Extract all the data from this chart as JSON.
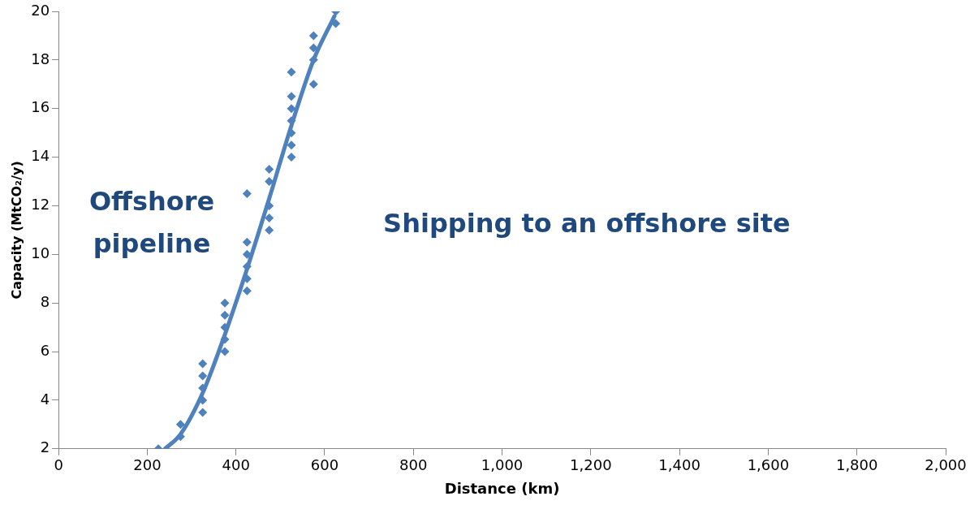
{
  "chart_data": {
    "type": "scatter",
    "xlabel": "Distance (km)",
    "ylabel": "Capacity (MtCO₂/y)",
    "annotations": [
      "Offshore pipeline",
      "Shipping to an offshore site"
    ],
    "series": [
      {
        "type": "scatter",
        "color": "#4f81bd",
        "marker": "diamond",
        "x": [
          225,
          275,
          275,
          325,
          325,
          325,
          325,
          325,
          375,
          375,
          375,
          375,
          375,
          425,
          425,
          425,
          425,
          425,
          425,
          475,
          475,
          475,
          475,
          475,
          525,
          525,
          525,
          525,
          525,
          525,
          525,
          575,
          575,
          575,
          575,
          625,
          625
        ],
        "values": [
          2,
          2.5,
          3,
          3.5,
          4,
          4.5,
          5,
          5.5,
          6,
          6.5,
          7,
          7.5,
          8,
          8.5,
          9,
          9.5,
          10,
          10.5,
          12.5,
          11,
          11.5,
          12,
          13,
          13.5,
          14,
          14.5,
          15,
          15.5,
          16,
          16.5,
          17.5,
          17,
          18,
          18.5,
          19,
          19.5,
          20
        ]
      },
      {
        "type": "line",
        "color": "#4f81bd",
        "marker": "none",
        "x": [
          240,
          275,
          325,
          375,
          425,
          475,
          525,
          575,
          622
        ],
        "values": [
          2,
          2.6,
          4.3,
          6.7,
          9.4,
          12.3,
          15.3,
          18,
          19.8
        ]
      }
    ],
    "xlim": [
      0,
      2000
    ],
    "xticks": [
      0,
      200,
      400,
      600,
      800,
      {
        "value": 1000,
        "label": "1,000"
      },
      {
        "value": 1200,
        "label": "1,200"
      },
      {
        "value": 1400,
        "label": "1,400"
      },
      {
        "value": 1600,
        "label": "1,600"
      },
      {
        "value": 1800,
        "label": "1,800"
      },
      {
        "value": 2000,
        "label": "2,000"
      }
    ],
    "ylim": [
      2,
      20
    ],
    "yticks": [
      2,
      4,
      6,
      8,
      10,
      12,
      14,
      16,
      18,
      20
    ],
    "grid": false,
    "legend": false
  }
}
